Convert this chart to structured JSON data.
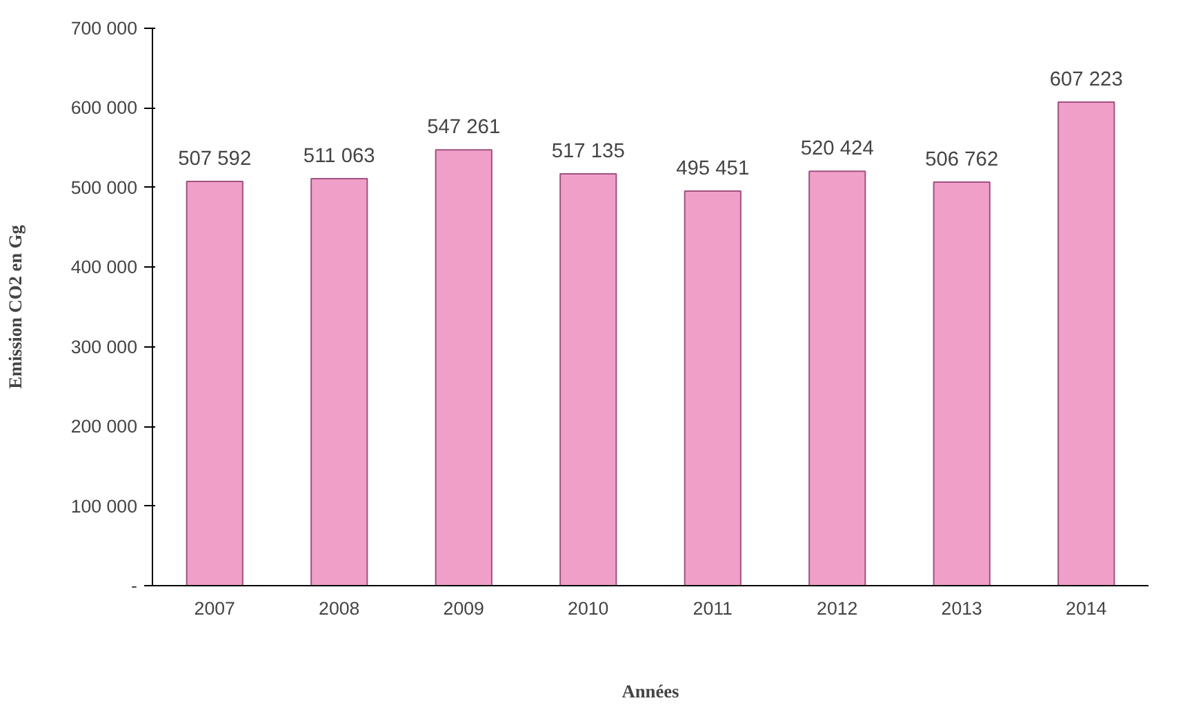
{
  "chart_data": {
    "type": "bar",
    "xlabel": "Années",
    "ylabel": "Emission CO2 en Gg",
    "categories": [
      "2007",
      "2008",
      "2009",
      "2010",
      "2011",
      "2012",
      "2013",
      "2014"
    ],
    "values": [
      507592,
      511063,
      547261,
      517135,
      495451,
      520424,
      506762,
      607223
    ],
    "value_labels": [
      "507 592",
      "511 063",
      "547 261",
      "517 135",
      "495 451",
      "520 424",
      "506 762",
      "607 223"
    ],
    "color": "#f0a0c8",
    "ylim": [
      0,
      700000
    ],
    "yticks": [
      {
        "value": 0,
        "label": "-"
      },
      {
        "value": 100000,
        "label": "100 000"
      },
      {
        "value": 200000,
        "label": "200 000"
      },
      {
        "value": 300000,
        "label": "300 000"
      },
      {
        "value": 400000,
        "label": "400 000"
      },
      {
        "value": 500000,
        "label": "500 000"
      },
      {
        "value": 600000,
        "label": "600 000"
      },
      {
        "value": 700000,
        "label": "700 000"
      }
    ],
    "grid": false
  }
}
